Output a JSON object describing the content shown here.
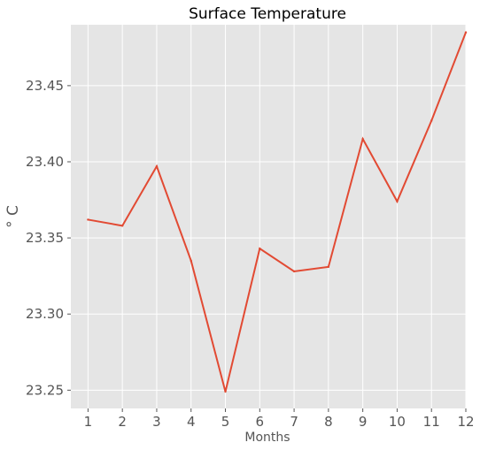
{
  "chart_data": {
    "type": "line",
    "title": "Surface Temperature",
    "xlabel": "Months",
    "ylabel": "° C",
    "x": [
      1,
      2,
      3,
      4,
      5,
      6,
      7,
      8,
      9,
      10,
      11,
      12
    ],
    "series": [
      {
        "color": "#E24A33",
        "values": [
          23.362,
          23.358,
          23.397,
          23.335,
          23.249,
          23.343,
          23.328,
          23.331,
          23.415,
          23.374,
          23.427,
          23.485
        ]
      }
    ],
    "xlim": [
      0.5,
      12
    ],
    "ylim": [
      23.238,
      23.49
    ],
    "xticks": [
      "1",
      "2",
      "3",
      "4",
      "5",
      "6",
      "7",
      "8",
      "9",
      "10",
      "11",
      "12"
    ],
    "yticks": [
      "23.25",
      "23.30",
      "23.35",
      "23.40",
      "23.45"
    ],
    "grid": true,
    "background": "#E5E5E5"
  }
}
